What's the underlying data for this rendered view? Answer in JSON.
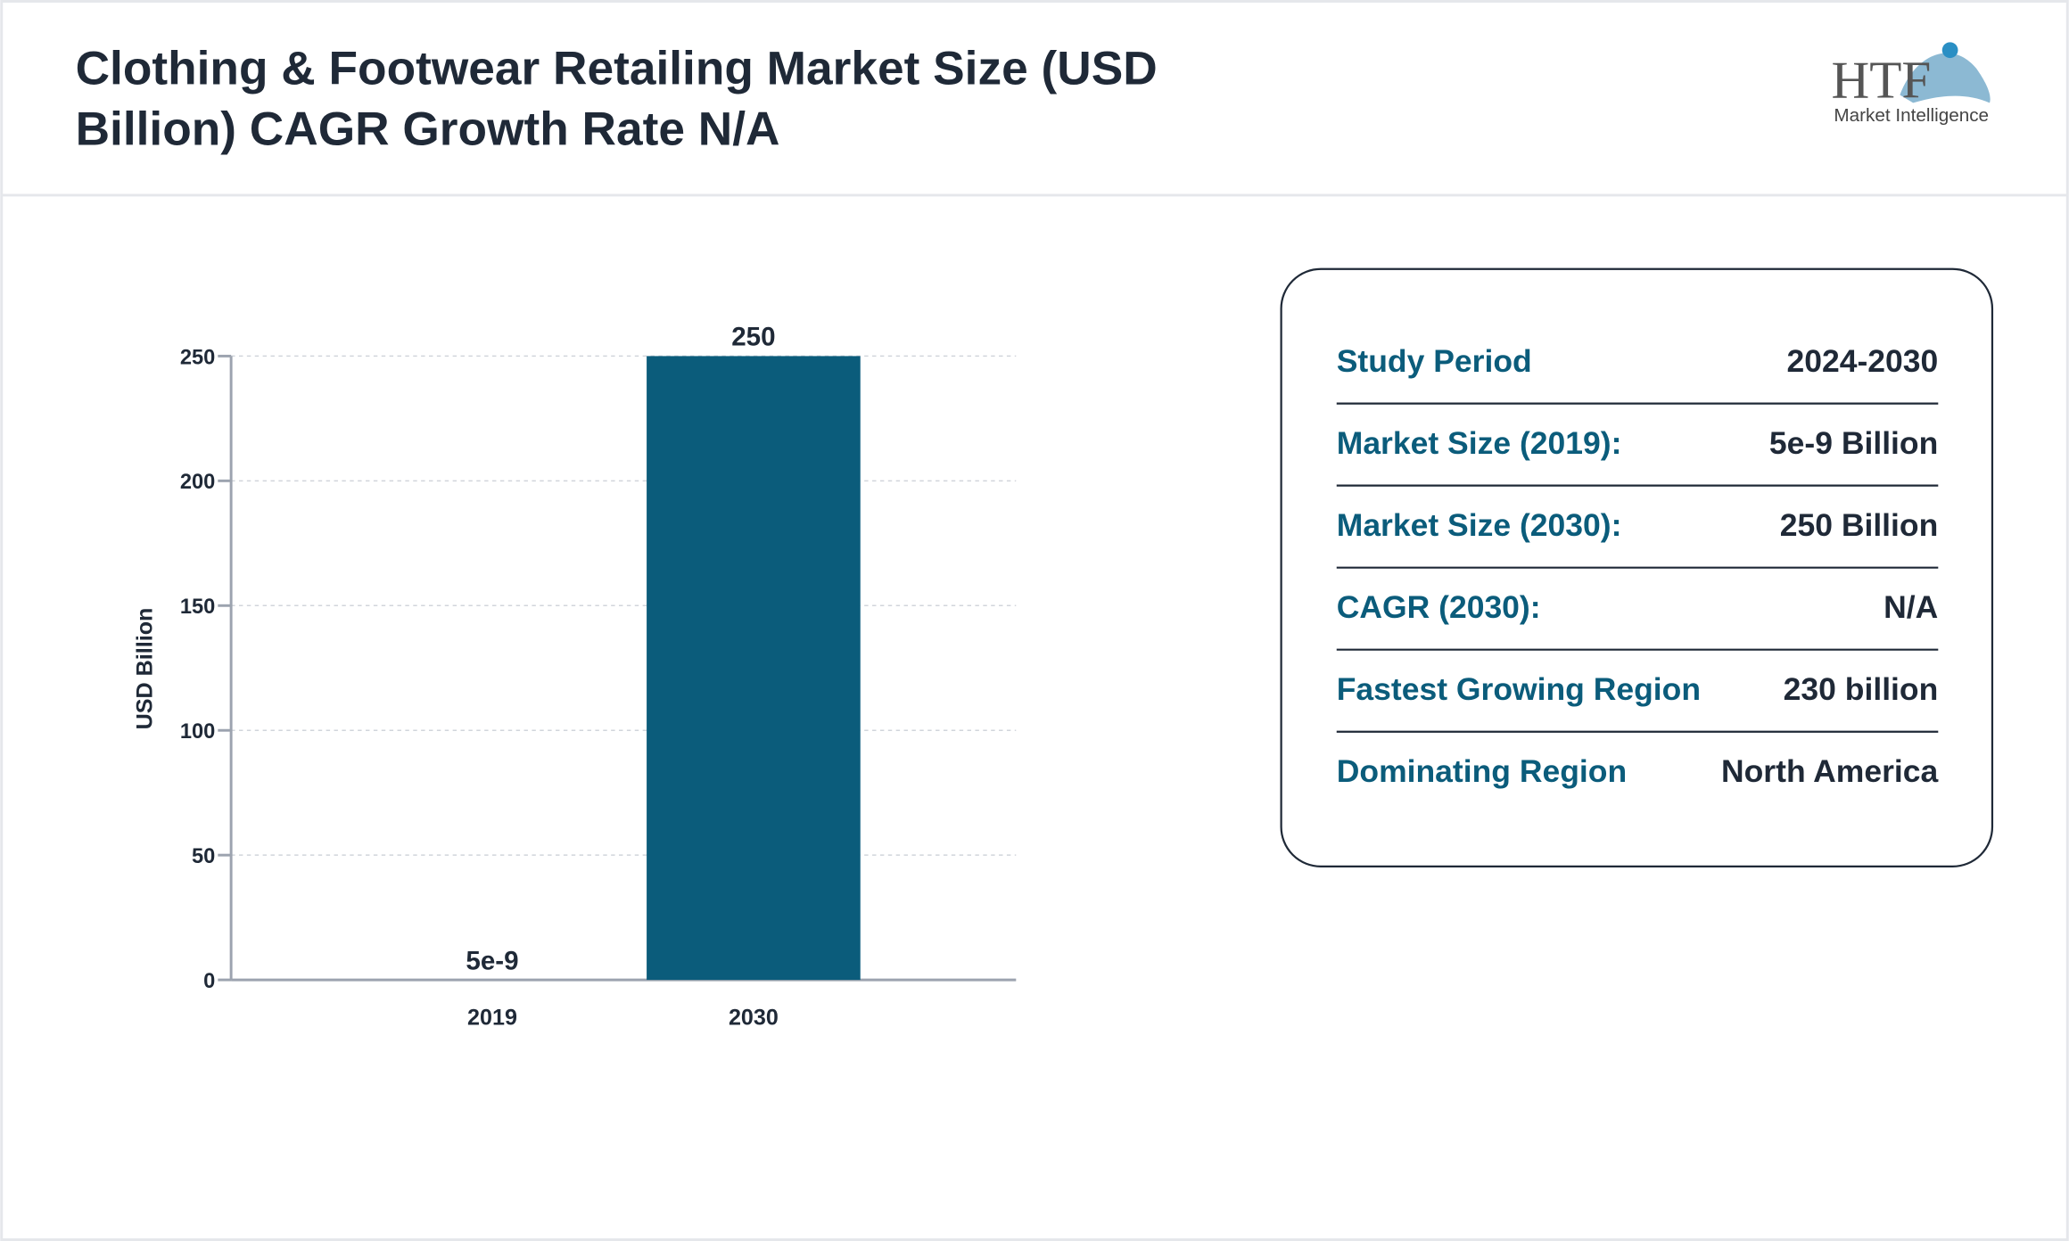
{
  "header": {
    "title": "Clothing & Footwear Retailing Market Size (USD Billion) CAGR Growth Rate N/A",
    "logo": {
      "mark": "HTF",
      "tagline": "Market Intelligence"
    }
  },
  "chart_data": {
    "type": "bar",
    "y_label": "USD Billion",
    "categories": [
      "2019",
      "2030"
    ],
    "values": [
      5e-09,
      250
    ],
    "color": "#0b5c7b",
    "ylim": [
      0,
      250
    ],
    "yticks": [
      0,
      50,
      100,
      150,
      200,
      250
    ],
    "grid": true
  },
  "info_box": {
    "rows": [
      {
        "label": "Study Period",
        "value": "2024-2030"
      },
      {
        "label": "Market Size (2019):",
        "value": "5e-9 Billion"
      },
      {
        "label": "Market Size (2030):",
        "value": "250 Billion"
      },
      {
        "label": "CAGR (2030):",
        "value": "N/A"
      },
      {
        "label": "Fastest Growing Region",
        "value": "230 billion"
      },
      {
        "label": "Dominating Region",
        "value": "North America"
      }
    ]
  }
}
